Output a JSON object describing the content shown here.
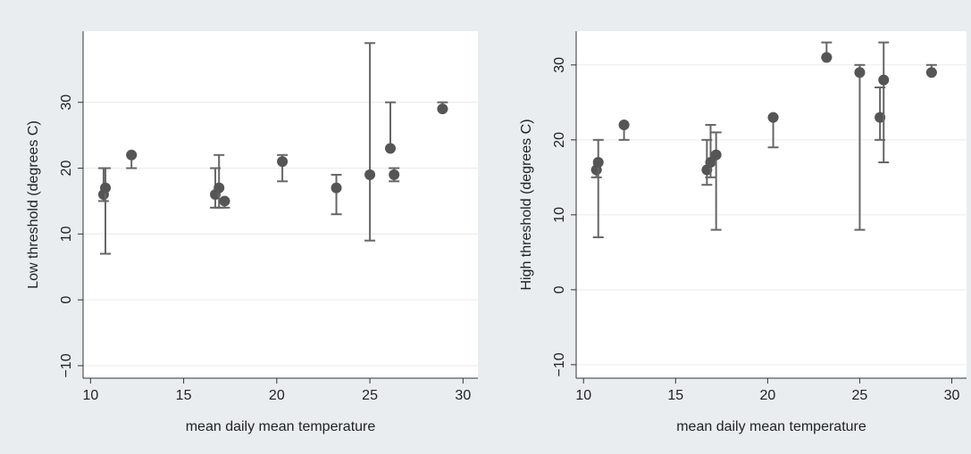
{
  "chart_data": [
    {
      "type": "scatter",
      "x_label": "mean daily mean temperature",
      "y_label": "Low threshold (degrees C)",
      "xlim": [
        9.6,
        30.8
      ],
      "ylim": [
        -11.9,
        40.8
      ],
      "xticks": [
        10,
        15,
        20,
        25,
        30
      ],
      "yticks": [
        {
          "value": -10,
          "label": "−10"
        },
        0,
        10,
        20,
        30
      ],
      "grid": true,
      "color": "#555555",
      "error_color": "#666666",
      "x": [
        10.7,
        10.8,
        12.2,
        16.7,
        16.9,
        17.2,
        20.3,
        23.2,
        25.0,
        26.1,
        26.3,
        28.9
      ],
      "values": [
        16,
        17,
        22,
        16,
        17,
        15,
        21,
        17,
        19,
        23,
        19,
        29
      ],
      "lower": [
        15,
        7,
        20,
        14,
        14,
        14,
        18,
        13,
        9,
        23,
        18,
        29
      ],
      "upper": [
        20,
        20,
        22,
        20,
        22,
        15,
        22,
        19,
        39,
        30,
        20,
        30
      ]
    },
    {
      "type": "scatter",
      "x_label": "mean daily mean temperature",
      "y_label": "High threshold (degrees C)",
      "xlim": [
        9.6,
        30.8
      ],
      "ylim": [
        -11.8,
        34.5
      ],
      "xticks": [
        10,
        15,
        20,
        25,
        30
      ],
      "yticks": [
        {
          "value": -10,
          "label": "−10"
        },
        0,
        10,
        20,
        30
      ],
      "grid": true,
      "color": "#555555",
      "error_color": "#666666",
      "x": [
        10.7,
        10.8,
        12.2,
        16.7,
        16.9,
        17.2,
        20.3,
        23.2,
        25.0,
        26.1,
        26.3,
        28.9
      ],
      "values": [
        16,
        17,
        22,
        16,
        17,
        18,
        23,
        31,
        29,
        23,
        28,
        29
      ],
      "lower": [
        15,
        7,
        20,
        14,
        15,
        8,
        19,
        31,
        8,
        20,
        17,
        29
      ],
      "upper": [
        16,
        20,
        22,
        20,
        22,
        21,
        23,
        33,
        30,
        27,
        33,
        30
      ]
    }
  ]
}
